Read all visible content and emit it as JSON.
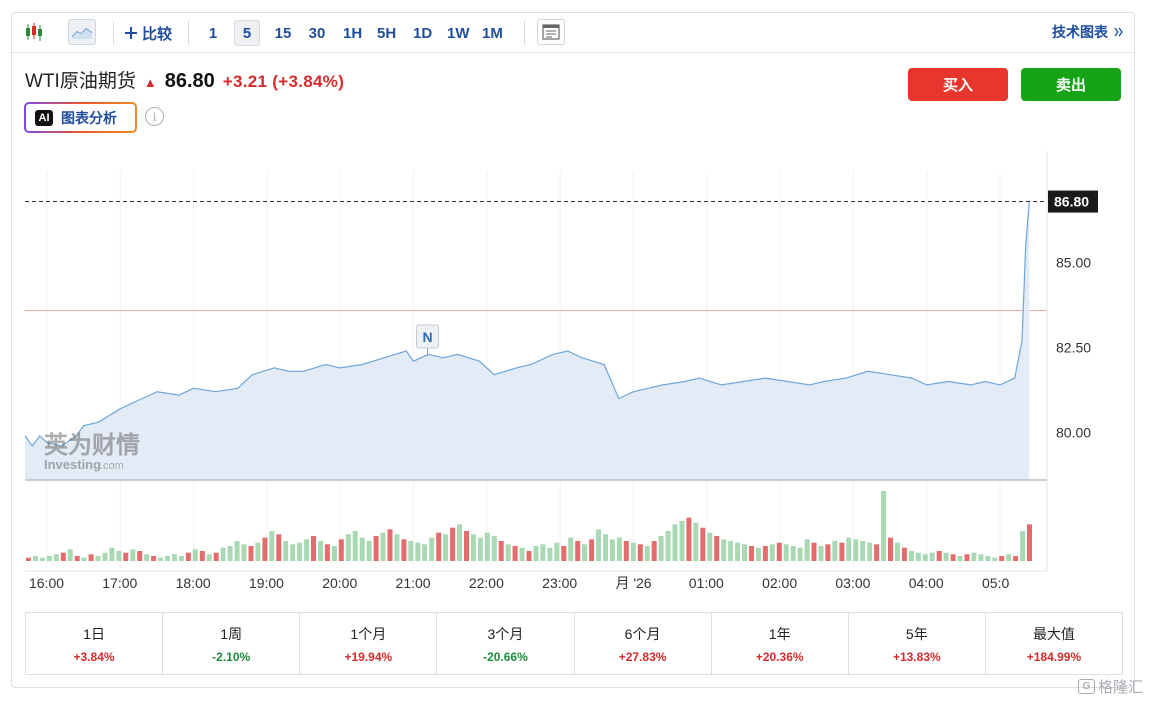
{
  "toolbar": {
    "compare_label": "比较",
    "compare_icon": "plus-icon",
    "intervals": [
      "1",
      "5",
      "15",
      "30",
      "1H",
      "5H",
      "1D",
      "1W",
      "1M"
    ],
    "active_interval": "5",
    "tech_chart_label": "技术图表",
    "tech_chart_icon": "double-chevron-right-icon"
  },
  "quote": {
    "name": "WTI原油期货",
    "price": "86.80",
    "change": "+3.21 (+3.84%)",
    "direction_icon": "up-arrow-icon",
    "change_color": "#d62b2b"
  },
  "ai": {
    "badge": "AI",
    "label": "图表分析",
    "info_icon": "info-icon"
  },
  "actions": {
    "buy_label": "买入",
    "sell_label": "卖出",
    "buy_color": "#e8352e",
    "sell_color": "#16a316"
  },
  "chart_data": {
    "type": "area",
    "y_ticks": [
      "85.00",
      "82.50",
      "80.00"
    ],
    "ylim": [
      78.6,
      87.7
    ],
    "x_ticks": [
      "16:00",
      "17:00",
      "18:00",
      "19:00",
      "20:00",
      "21:00",
      "22:00",
      "23:00",
      "月 '26",
      "01:00",
      "02:00",
      "03:00",
      "04:00",
      "05:0"
    ],
    "last_price_label": "86.80",
    "last_price": 86.8,
    "reference_line_price": 83.59,
    "news_marker_label": "N",
    "news_marker_time": 21.0,
    "watermark_cn": "英为财情",
    "watermark_en": "Investing",
    "watermark_domain": ".com",
    "x": [
      15.7,
      15.8,
      15.9,
      16.0,
      16.2,
      16.4,
      16.5,
      16.7,
      17.0,
      17.3,
      17.5,
      17.8,
      18.0,
      18.3,
      18.6,
      18.8,
      19.1,
      19.3,
      19.5,
      19.8,
      20.0,
      20.3,
      20.6,
      20.9,
      21.0,
      21.2,
      21.4,
      21.6,
      21.9,
      22.1,
      22.4,
      22.6,
      22.9,
      23.1,
      23.3,
      23.6,
      23.8,
      24.0,
      24.2,
      24.4,
      24.7,
      24.9,
      25.2,
      25.5,
      25.8,
      26.1,
      26.4,
      26.6,
      26.9,
      27.2,
      27.5,
      27.8,
      28.0,
      28.3,
      28.6,
      28.8,
      29.0,
      29.2,
      29.3,
      29.35,
      29.4
    ],
    "y": [
      79.9,
      79.6,
      79.9,
      79.7,
      79.6,
      79.9,
      80.2,
      80.3,
      80.7,
      81.0,
      81.2,
      81.1,
      81.3,
      81.2,
      81.3,
      81.7,
      81.9,
      81.8,
      81.8,
      82.0,
      81.9,
      82.0,
      82.2,
      82.4,
      82.1,
      82.3,
      82.2,
      82.3,
      82.1,
      81.7,
      81.9,
      82.0,
      82.3,
      82.4,
      82.2,
      82.0,
      81.0,
      81.2,
      81.3,
      81.4,
      81.5,
      81.6,
      81.4,
      81.5,
      81.6,
      81.5,
      81.4,
      81.5,
      81.6,
      81.8,
      81.7,
      81.6,
      81.4,
      81.5,
      81.4,
      81.5,
      81.4,
      81.6,
      82.7,
      85.5,
      86.8
    ],
    "volume": {
      "bars": [
        2,
        3,
        2,
        3,
        4,
        5,
        7,
        3,
        2,
        4,
        3,
        5,
        8,
        6,
        5,
        7,
        6,
        4,
        3,
        2,
        3,
        4,
        3,
        5,
        7,
        6,
        4,
        5,
        8,
        9,
        12,
        10,
        9,
        11,
        14,
        18,
        16,
        12,
        10,
        11,
        13,
        15,
        12,
        10,
        9,
        13,
        16,
        18,
        14,
        12,
        15,
        17,
        19,
        16,
        13,
        12,
        11,
        10,
        14,
        17,
        16,
        20,
        22,
        18,
        16,
        14,
        17,
        15,
        12,
        10,
        9,
        8,
        6,
        9,
        10,
        8,
        11,
        9,
        14,
        12,
        10,
        13,
        19,
        16,
        13,
        14,
        12,
        11,
        10,
        9,
        12,
        15,
        18,
        22,
        24,
        26,
        23,
        20,
        17,
        15,
        13,
        12,
        11,
        10,
        9,
        8,
        9,
        10,
        11,
        10,
        9,
        8,
        13,
        11,
        9,
        10,
        12,
        11,
        14,
        13,
        12,
        11,
        10,
        42,
        14,
        11,
        8,
        6,
        5,
        4,
        5,
        6,
        5,
        4,
        3,
        4,
        5,
        4,
        3,
        2,
        3,
        4,
        3,
        18,
        22
      ],
      "up_color": "#a9d9b3",
      "down_color": "#e46c6c"
    }
  },
  "performance": [
    {
      "label": "1日",
      "value": "+3.84%",
      "color": "#d62b2b"
    },
    {
      "label": "1周",
      "value": "-2.10%",
      "color": "#1c8c3c"
    },
    {
      "label": "1个月",
      "value": "+19.94%",
      "color": "#d62b2b"
    },
    {
      "label": "3个月",
      "value": "-20.66%",
      "color": "#1c8c3c"
    },
    {
      "label": "6个月",
      "value": "+27.83%",
      "color": "#d62b2b"
    },
    {
      "label": "1年",
      "value": "+20.36%",
      "color": "#d62b2b"
    },
    {
      "label": "5年",
      "value": "+13.83%",
      "color": "#d62b2b"
    },
    {
      "label": "最大值",
      "value": "+184.99%",
      "color": "#d62b2b"
    }
  ],
  "site_watermark": {
    "icon_letter": "G",
    "text": "格隆汇"
  }
}
